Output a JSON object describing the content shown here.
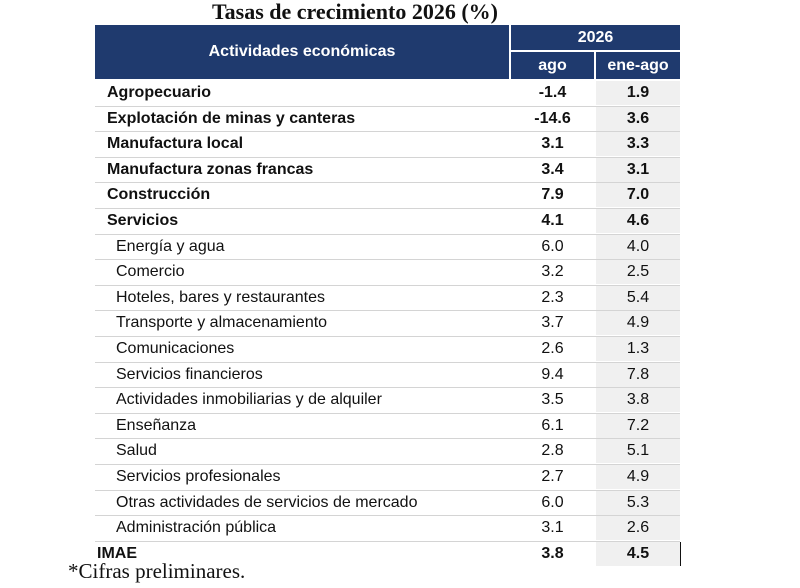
{
  "chart_data": {
    "type": "table",
    "title": "Tasas de crecimiento 2026 (%)",
    "header": {
      "activity_label": "Actividades económicas",
      "year": "2026",
      "columns": [
        "ago",
        "ene-ago"
      ]
    },
    "rows": [
      {
        "label": "Agropecuario",
        "level": "main",
        "ago": "-1.4",
        "ene_ago": "1.9"
      },
      {
        "label": "Explotación de minas y canteras",
        "level": "main",
        "ago": "-14.6",
        "ene_ago": "3.6"
      },
      {
        "label": "Manufactura local",
        "level": "main",
        "ago": "3.1",
        "ene_ago": "3.3"
      },
      {
        "label": "Manufactura zonas francas",
        "level": "main",
        "ago": "3.4",
        "ene_ago": "3.1"
      },
      {
        "label": "Construcción",
        "level": "main",
        "ago": "7.9",
        "ene_ago": "7.0"
      },
      {
        "label": "Servicios",
        "level": "main",
        "ago": "4.1",
        "ene_ago": "4.6"
      },
      {
        "label": "Energía y agua",
        "level": "sub",
        "ago": "6.0",
        "ene_ago": "4.0"
      },
      {
        "label": "Comercio",
        "level": "sub",
        "ago": "3.2",
        "ene_ago": "2.5"
      },
      {
        "label": "Hoteles, bares y restaurantes",
        "level": "sub",
        "ago": "2.3",
        "ene_ago": "5.4"
      },
      {
        "label": "Transporte y almacenamiento",
        "level": "sub",
        "ago": "3.7",
        "ene_ago": "4.9"
      },
      {
        "label": "Comunicaciones",
        "level": "sub",
        "ago": "2.6",
        "ene_ago": "1.3"
      },
      {
        "label": "Servicios financieros",
        "level": "sub",
        "ago": "9.4",
        "ene_ago": "7.8"
      },
      {
        "label": "Actividades inmobiliarias y de alquiler",
        "level": "sub",
        "ago": "3.5",
        "ene_ago": "3.8"
      },
      {
        "label": "Enseñanza",
        "level": "sub",
        "ago": "6.1",
        "ene_ago": "7.2"
      },
      {
        "label": "Salud",
        "level": "sub",
        "ago": "2.8",
        "ene_ago": "5.1"
      },
      {
        "label": "Servicios profesionales",
        "level": "sub",
        "ago": "2.7",
        "ene_ago": "4.9"
      },
      {
        "label": "Otras actividades de servicios de mercado",
        "level": "sub",
        "ago": "6.0",
        "ene_ago": "5.3"
      },
      {
        "label": "Administración pública",
        "level": "sub",
        "ago": "3.1",
        "ene_ago": "2.6"
      },
      {
        "label": "IMAE",
        "level": "total",
        "ago": "3.8",
        "ene_ago": "4.5"
      }
    ],
    "footnote": "*Cifras preliminares.",
    "colors": {
      "header_bg": "#1f3a6e",
      "header_text": "#ffffff",
      "alt_column_bg": "#f0f0f0"
    }
  }
}
